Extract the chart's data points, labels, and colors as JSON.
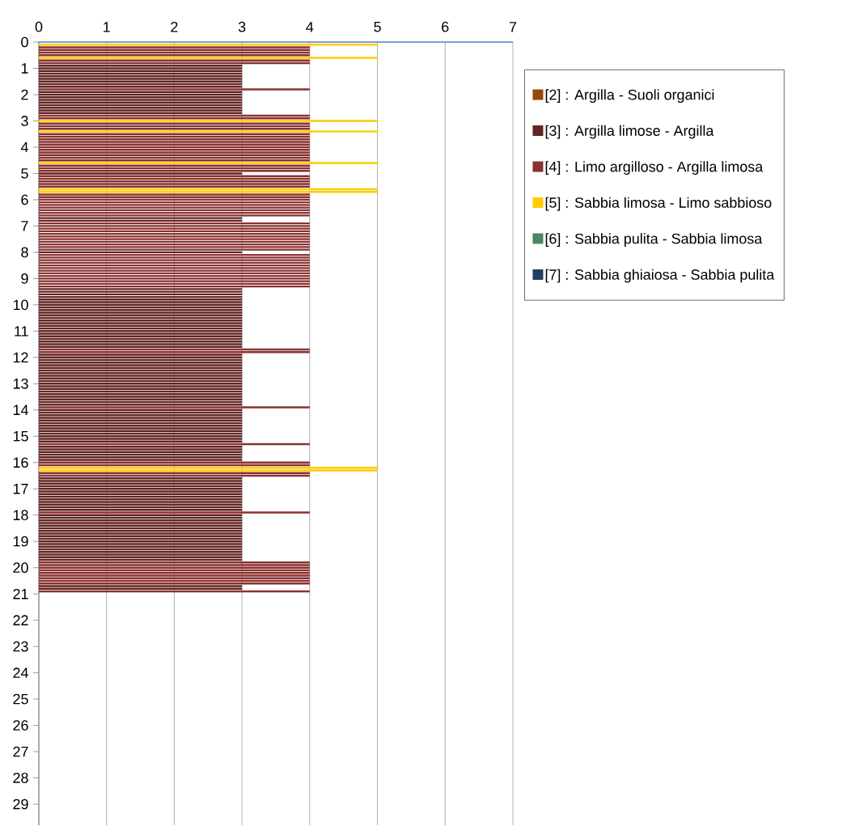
{
  "chart_data": {
    "type": "bar",
    "orientation": "horizontal",
    "xlim": [
      0,
      7
    ],
    "xticks": [
      0,
      1,
      2,
      3,
      4,
      5,
      6,
      7
    ],
    "ylim": [
      29.8,
      0
    ],
    "yticks": [
      0,
      1,
      2,
      3,
      4,
      5,
      6,
      7,
      8,
      9,
      10,
      11,
      12,
      13,
      14,
      15,
      16,
      17,
      18,
      19,
      20,
      21,
      22,
      23,
      24,
      25,
      26,
      27,
      28,
      29
    ],
    "grid": "x",
    "legend": "right",
    "series": [
      {
        "name": "[2] : Argilla - Suoli organici",
        "color": "#984807"
      },
      {
        "name": "[3] : Argilla limose - Argilla",
        "color": "#632523",
        "x": [
          0.9,
          1.0,
          1.1,
          1.2,
          1.3,
          1.4,
          1.5,
          1.6,
          1.7,
          1.9,
          2.0,
          2.1,
          2.2,
          2.3,
          2.4,
          2.5,
          2.6,
          2.7,
          5.0,
          6.7,
          6.8,
          8.0,
          9.4,
          9.5,
          9.6,
          9.7,
          9.8,
          9.9,
          10.0,
          10.1,
          10.2,
          10.3,
          10.4,
          10.5,
          10.6,
          10.7,
          10.8,
          10.9,
          11.0,
          11.1,
          11.2,
          11.3,
          11.4,
          11.5,
          11.6,
          11.9,
          12.0,
          12.1,
          12.2,
          12.3,
          12.4,
          12.5,
          12.6,
          12.7,
          12.8,
          12.9,
          13.0,
          13.1,
          13.2,
          13.3,
          13.4,
          13.5,
          13.6,
          13.7,
          13.8,
          14.0,
          14.1,
          14.2,
          14.3,
          14.4,
          14.5,
          14.6,
          14.7,
          14.8,
          14.9,
          15.0,
          15.1,
          15.2,
          15.4,
          15.5,
          15.6,
          15.7,
          15.8,
          15.9,
          16.6,
          16.7,
          16.8,
          16.9,
          17.0,
          17.1,
          17.2,
          17.3,
          17.4,
          17.5,
          17.6,
          17.7,
          17.8,
          18.0,
          18.1,
          18.2,
          18.3,
          18.4,
          18.5,
          18.6,
          18.7,
          18.8,
          18.9,
          19.0,
          19.1,
          19.2,
          19.3,
          19.4,
          19.5,
          19.6,
          19.7,
          20.7,
          20.8
        ],
        "values": [
          3,
          3,
          3,
          3,
          3,
          3,
          3,
          3,
          3,
          3,
          3,
          3,
          3,
          3,
          3,
          3,
          3,
          3,
          3,
          3,
          3,
          3,
          3,
          3,
          3,
          3,
          3,
          3,
          3,
          3,
          3,
          3,
          3,
          3,
          3,
          3,
          3,
          3,
          3,
          3,
          3,
          3,
          3,
          3,
          3,
          3,
          3,
          3,
          3,
          3,
          3,
          3,
          3,
          3,
          3,
          3,
          3,
          3,
          3,
          3,
          3,
          3,
          3,
          3,
          3,
          3,
          3,
          3,
          3,
          3,
          3,
          3,
          3,
          3,
          3,
          3,
          3,
          3,
          3,
          3,
          3,
          3,
          3,
          3,
          3,
          3,
          3,
          3,
          3,
          3,
          3,
          3,
          3,
          3,
          3,
          3,
          3,
          3,
          3,
          3,
          3,
          3,
          3,
          3,
          3,
          3,
          3,
          3,
          3,
          3,
          3,
          3,
          3,
          3,
          3,
          3,
          3
        ]
      },
      {
        "name": "[4] : Limo argilloso - Argilla limosa",
        "color": "#8a3130",
        "x": [
          0.2,
          0.3,
          0.4,
          0.5,
          0.7,
          0.8,
          1.8,
          2.8,
          2.9,
          3.1,
          3.2,
          3.3,
          3.5,
          3.6,
          3.7,
          3.8,
          3.9,
          4.0,
          4.1,
          4.2,
          4.3,
          4.4,
          4.5,
          4.7,
          4.8,
          4.9,
          5.1,
          5.2,
          5.3,
          5.4,
          5.5,
          5.8,
          5.9,
          6.0,
          6.1,
          6.2,
          6.3,
          6.4,
          6.5,
          6.6,
          6.9,
          7.0,
          7.1,
          7.2,
          7.3,
          7.4,
          7.5,
          7.6,
          7.7,
          7.8,
          7.9,
          8.1,
          8.2,
          8.3,
          8.4,
          8.5,
          8.6,
          8.7,
          8.8,
          8.9,
          9.0,
          9.1,
          9.2,
          9.3,
          11.7,
          11.8,
          13.9,
          15.3,
          16.0,
          16.1,
          16.4,
          16.5,
          17.9,
          19.8,
          19.9,
          20.0,
          20.1,
          20.2,
          20.3,
          20.4,
          20.5,
          20.6,
          20.9
        ],
        "values": [
          4,
          4,
          4,
          4,
          4,
          4,
          4,
          4,
          4,
          4,
          4,
          4,
          4,
          4,
          4,
          4,
          4,
          4,
          4,
          4,
          4,
          4,
          4,
          4,
          4,
          4,
          4,
          4,
          4,
          4,
          4,
          4,
          4,
          4,
          4,
          4,
          4,
          4,
          4,
          4,
          4,
          4,
          4,
          4,
          4,
          4,
          4,
          4,
          4,
          4,
          4,
          4,
          4,
          4,
          4,
          4,
          4,
          4,
          4,
          4,
          4,
          4,
          4,
          4,
          4,
          4,
          4,
          4,
          4,
          4,
          4,
          4,
          4,
          4,
          4,
          4,
          4,
          4,
          4,
          4,
          4,
          4,
          4
        ]
      },
      {
        "name": "[5] : Sabbia limosa - Limo sabbioso",
        "color": "#ffcc00",
        "x": [
          0.1,
          0.6,
          3.0,
          3.4,
          4.6,
          5.6,
          5.7,
          16.2,
          16.3
        ],
        "values": [
          5,
          5,
          5,
          5,
          5,
          5,
          5,
          5,
          5
        ]
      },
      {
        "name": "[6] : Sabbia pulita - Sabbia limosa",
        "color": "#4e8562"
      },
      {
        "name": "[7] : Sabbia ghiaiosa - Sabbia pulita",
        "color": "#243f60"
      }
    ]
  }
}
